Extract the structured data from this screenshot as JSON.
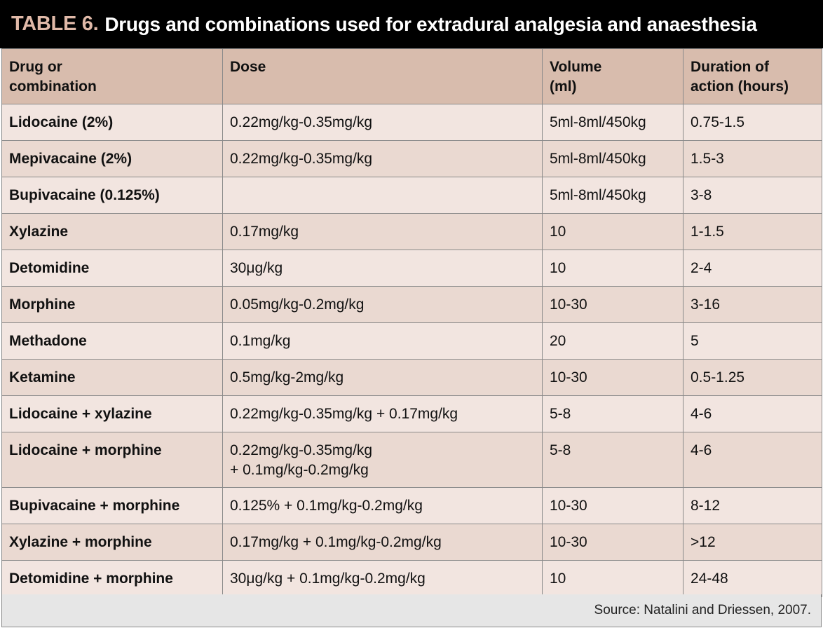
{
  "title": {
    "label": "TABLE 6.",
    "text": "Drugs and combinations used for extradural analgesia and anaesthesia"
  },
  "colors": {
    "title_background": "#000000",
    "title_label": "#e0b9a8",
    "header_background": "#d8bcad",
    "row_light": "#f2e5e0",
    "row_dark": "#ead9d1",
    "footer_background": "#e6e6e6"
  },
  "table": {
    "headers": {
      "drug_line1": "Drug or",
      "drug_line2": "combination",
      "dose": "Dose",
      "volume_line1": "Volume",
      "volume_line2": "(ml)",
      "duration_line1": "Duration of",
      "duration_line2": "action (hours)"
    },
    "rows": [
      {
        "drug": "Lidocaine (2%)",
        "dose": "0.22mg/kg-0.35mg/kg",
        "dose2": "",
        "volume": "5ml-8ml/450kg",
        "duration": "0.75-1.5"
      },
      {
        "drug": "Mepivacaine (2%)",
        "dose": "0.22mg/kg-0.35mg/kg",
        "dose2": "",
        "volume": "5ml-8ml/450kg",
        "duration": "1.5-3"
      },
      {
        "drug": "Bupivacaine (0.125%)",
        "dose": "",
        "dose2": "",
        "volume": "5ml-8ml/450kg",
        "duration": "3-8"
      },
      {
        "drug": "Xylazine",
        "dose": "0.17mg/kg",
        "dose2": "",
        "volume": "10",
        "duration": "1-1.5"
      },
      {
        "drug": "Detomidine",
        "dose": "30μg/kg",
        "dose2": "",
        "volume": "10",
        "duration": "2-4"
      },
      {
        "drug": "Morphine",
        "dose": "0.05mg/kg-0.2mg/kg",
        "dose2": "",
        "volume": "10-30",
        "duration": "3-16"
      },
      {
        "drug": "Methadone",
        "dose": "0.1mg/kg",
        "dose2": "",
        "volume": "20",
        "duration": "5"
      },
      {
        "drug": "Ketamine",
        "dose": "0.5mg/kg-2mg/kg",
        "dose2": "",
        "volume": "10-30",
        "duration": "0.5-1.25"
      },
      {
        "drug": "Lidocaine + xylazine",
        "dose": "0.22mg/kg-0.35mg/kg + 0.17mg/kg",
        "dose2": "",
        "volume": "5-8",
        "duration": "4-6"
      },
      {
        "drug": "Lidocaine + morphine",
        "dose": "0.22mg/kg-0.35mg/kg",
        "dose2": "+ 0.1mg/kg-0.2mg/kg",
        "volume": "5-8",
        "duration": "4-6"
      },
      {
        "drug": "Bupivacaine + morphine",
        "dose": "0.125% + 0.1mg/kg-0.2mg/kg",
        "dose2": "",
        "volume": "10-30",
        "duration": "8-12"
      },
      {
        "drug": "Xylazine + morphine",
        "dose": "0.17mg/kg + 0.1mg/kg-0.2mg/kg",
        "dose2": "",
        "volume": "10-30",
        "duration": ">12"
      },
      {
        "drug": "Detomidine + morphine",
        "dose": "30μg/kg + 0.1mg/kg-0.2mg/kg",
        "dose2": "",
        "volume": "10",
        "duration": "24-48"
      }
    ]
  },
  "footer": {
    "source": "Source: Natalini and Driessen, 2007."
  }
}
